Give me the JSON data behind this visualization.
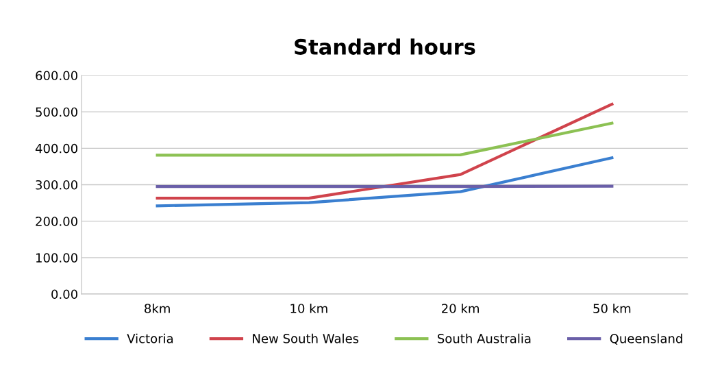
{
  "chart_data": {
    "type": "line",
    "title": "Standard hours",
    "categories": [
      "8km",
      "10 km",
      "20 km",
      "50 km"
    ],
    "series": [
      {
        "name": "Victoria",
        "color": "#3a7fd0",
        "values": [
          242,
          251,
          281,
          374
        ]
      },
      {
        "name": "New South Wales",
        "color": "#d0434c",
        "values": [
          263,
          263,
          328,
          521
        ]
      },
      {
        "name": "South Australia",
        "color": "#8cc153",
        "values": [
          381,
          381,
          382,
          469
        ]
      },
      {
        "name": "Queensland",
        "color": "#6a5fa8",
        "values": [
          295,
          295,
          295,
          296
        ]
      }
    ],
    "ylim": [
      0,
      600
    ],
    "yticks": [
      {
        "value": 0,
        "label": "0.00"
      },
      {
        "value": 100,
        "label": "100.00"
      },
      {
        "value": 200,
        "label": "200.00"
      },
      {
        "value": 300,
        "label": "300.00"
      },
      {
        "value": 400,
        "label": "400.00"
      },
      {
        "value": 500,
        "label": "500.00"
      },
      {
        "value": 600,
        "label": "600.00"
      }
    ],
    "grid": "y",
    "legend": "bottom",
    "marker": "none",
    "line_style": "solid"
  }
}
